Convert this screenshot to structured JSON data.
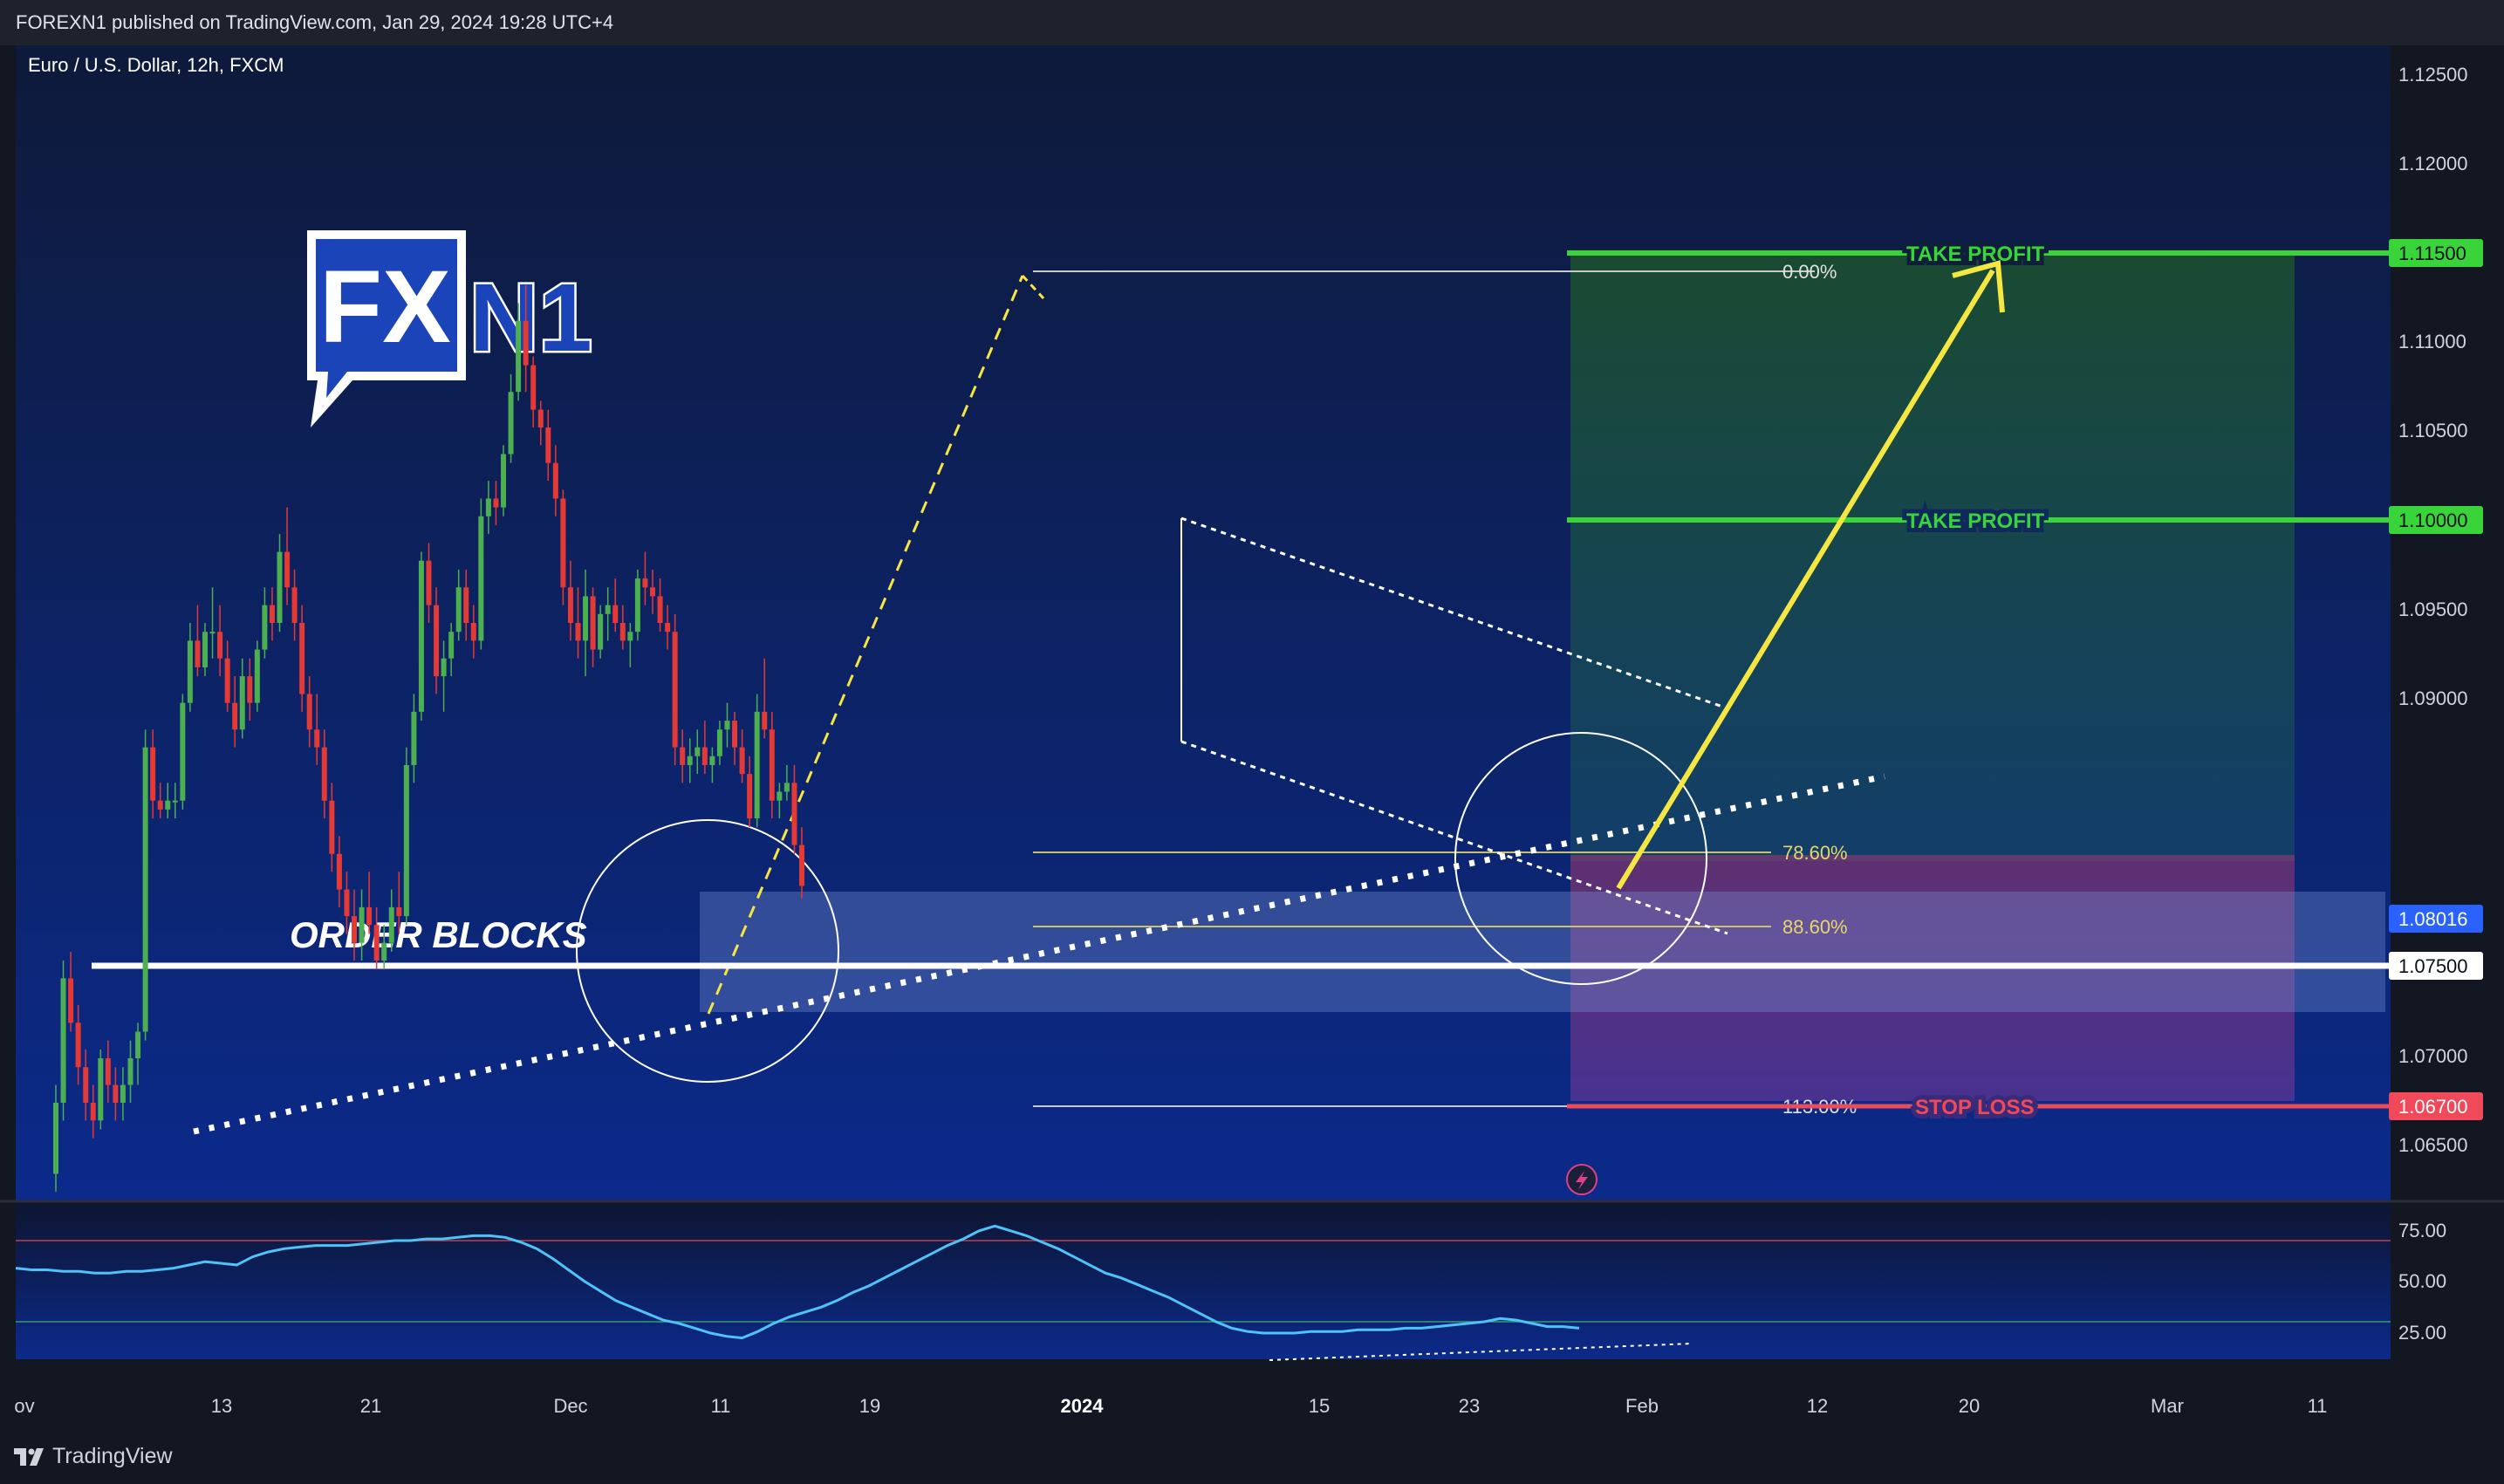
{
  "header": {
    "published": "FOREXN1 published on TradingView.com, Jan 29, 2024 19:28 UTC+4"
  },
  "footer": {
    "brand": "TradingView",
    "brand_icon": "tradingview-logo-icon"
  },
  "logo": {
    "text_fx": "FX",
    "text_n1": "N1"
  },
  "chart_data": {
    "type": "candlestick",
    "title": "Euro / U.S. Dollar, 12h, FXCM",
    "ylim": [
      1.0625,
      1.1275
    ],
    "y_ticks": [
      "1.06500",
      "1.07000",
      "1.09000",
      "1.09500",
      "1.10500",
      "1.11000",
      "1.12000",
      "1.12500"
    ],
    "x_ticks": [
      "ov",
      "13",
      "21",
      "Dec",
      "11",
      "19",
      "2024",
      "15",
      "23",
      "Feb",
      "12",
      "20",
      "Mar",
      "11"
    ],
    "current_price": "1.08016",
    "price_tags": [
      "1.11500",
      "1.10000",
      "1.07500",
      "1.06700"
    ],
    "annotations": {
      "take_profit_1": "TAKE PROFIT",
      "take_profit_2": "TAKE PROFIT",
      "stop_loss": "STOP LOSS",
      "order_blocks": "ORDER BLOCKS"
    },
    "fib_levels": [
      {
        "label": "0.00%",
        "price": 1.1137
      },
      {
        "label": "78.60%",
        "price": 1.0814
      },
      {
        "label": "88.60%",
        "price": 1.0773
      },
      {
        "label": "113.00%",
        "price": 1.067
      }
    ],
    "candles": [
      [
        1.064,
        1.069,
        1.063,
        1.068
      ],
      [
        1.068,
        1.076,
        1.067,
        1.075
      ],
      [
        1.075,
        1.0765,
        1.072,
        1.0725
      ],
      [
        1.0725,
        1.0735,
        1.069,
        1.07
      ],
      [
        1.07,
        1.071,
        1.067,
        1.068
      ],
      [
        1.068,
        1.069,
        1.066,
        1.067
      ],
      [
        1.067,
        1.071,
        1.0665,
        1.0705
      ],
      [
        1.0705,
        1.0715,
        1.068,
        1.069
      ],
      [
        1.069,
        1.07,
        1.067,
        1.068
      ],
      [
        1.068,
        1.07,
        1.067,
        1.069
      ],
      [
        1.069,
        1.0715,
        1.068,
        1.0705
      ],
      [
        1.0705,
        1.0725,
        1.069,
        1.072
      ],
      [
        1.072,
        1.089,
        1.0715,
        1.088
      ],
      [
        1.088,
        1.089,
        1.084,
        1.085
      ],
      [
        1.085,
        1.086,
        1.084,
        1.0845
      ],
      [
        1.0845,
        1.086,
        1.084,
        1.085
      ],
      [
        1.085,
        1.086,
        1.084,
        1.085
      ],
      [
        1.085,
        1.091,
        1.0845,
        1.0905
      ],
      [
        1.0905,
        1.095,
        1.09,
        1.094
      ],
      [
        1.094,
        1.096,
        1.092,
        1.0925
      ],
      [
        1.0925,
        1.095,
        1.092,
        1.0945
      ],
      [
        1.0945,
        1.097,
        1.093,
        1.0945
      ],
      [
        1.0945,
        1.096,
        1.092,
        1.093
      ],
      [
        1.093,
        1.094,
        1.09,
        1.0905
      ],
      [
        1.0905,
        1.092,
        1.088,
        1.089
      ],
      [
        1.089,
        1.093,
        1.0885,
        1.092
      ],
      [
        1.092,
        1.093,
        1.0895,
        1.0905
      ],
      [
        1.0905,
        1.094,
        1.09,
        1.0935
      ],
      [
        1.0935,
        1.097,
        1.093,
        1.096
      ],
      [
        1.096,
        1.097,
        1.094,
        1.095
      ],
      [
        1.095,
        1.1,
        1.0945,
        1.099
      ],
      [
        1.099,
        1.1015,
        1.096,
        1.097
      ],
      [
        1.097,
        1.098,
        1.094,
        1.095
      ],
      [
        1.095,
        1.096,
        1.09,
        1.091
      ],
      [
        1.091,
        1.092,
        1.088,
        1.089
      ],
      [
        1.089,
        1.091,
        1.087,
        1.088
      ],
      [
        1.088,
        1.089,
        1.084,
        1.085
      ],
      [
        1.085,
        1.086,
        1.081,
        1.082
      ],
      [
        1.082,
        1.083,
        1.079,
        1.08
      ],
      [
        1.08,
        1.081,
        1.0775,
        1.0785
      ],
      [
        1.0785,
        1.08,
        1.076,
        1.077
      ],
      [
        1.077,
        1.08,
        1.076,
        1.079
      ],
      [
        1.079,
        1.081,
        1.0775,
        1.078
      ],
      [
        1.078,
        1.079,
        1.0755,
        1.076
      ],
      [
        1.076,
        1.078,
        1.0755,
        1.077
      ],
      [
        1.077,
        1.08,
        1.0765,
        1.079
      ],
      [
        1.079,
        1.081,
        1.0775,
        1.0785
      ],
      [
        1.0785,
        1.088,
        1.078,
        1.087
      ],
      [
        1.087,
        1.091,
        1.086,
        1.09
      ],
      [
        1.09,
        1.099,
        1.0895,
        1.0985
      ],
      [
        1.0985,
        1.0995,
        1.095,
        1.096
      ],
      [
        1.096,
        1.097,
        1.091,
        1.092
      ],
      [
        1.092,
        1.094,
        1.09,
        1.093
      ],
      [
        1.093,
        1.095,
        1.092,
        1.0945
      ],
      [
        1.0945,
        1.098,
        1.094,
        1.097
      ],
      [
        1.097,
        1.098,
        1.094,
        1.095
      ],
      [
        1.095,
        1.096,
        1.093,
        1.094
      ],
      [
        1.094,
        1.102,
        1.0935,
        1.101
      ],
      [
        1.101,
        1.103,
        1.1,
        1.102
      ],
      [
        1.102,
        1.103,
        1.1005,
        1.1015
      ],
      [
        1.1015,
        1.105,
        1.101,
        1.1045
      ],
      [
        1.1045,
        1.109,
        1.104,
        1.108
      ],
      [
        1.108,
        1.113,
        1.1075,
        1.112
      ],
      [
        1.112,
        1.114,
        1.108,
        1.1095
      ],
      [
        1.1095,
        1.11,
        1.106,
        1.107
      ],
      [
        1.107,
        1.1075,
        1.105,
        1.106
      ],
      [
        1.106,
        1.107,
        1.103,
        1.104
      ],
      [
        1.104,
        1.105,
        1.101,
        1.102
      ],
      [
        1.102,
        1.1025,
        1.096,
        1.097
      ],
      [
        1.097,
        1.0985,
        1.094,
        1.095
      ],
      [
        1.095,
        1.097,
        1.093,
        1.094
      ],
      [
        1.094,
        1.098,
        1.092,
        1.0965
      ],
      [
        1.0965,
        1.097,
        1.0925,
        1.0935
      ],
      [
        1.0935,
        1.096,
        1.093,
        1.0955
      ],
      [
        1.0955,
        1.097,
        1.094,
        1.096
      ],
      [
        1.096,
        1.0975,
        1.0945,
        1.095
      ],
      [
        1.095,
        1.096,
        1.0935,
        1.094
      ],
      [
        1.094,
        1.095,
        1.0925,
        1.0945
      ],
      [
        1.0945,
        1.098,
        1.094,
        1.0975
      ],
      [
        1.0975,
        1.099,
        1.096,
        1.097
      ],
      [
        1.097,
        1.098,
        1.0955,
        1.0965
      ],
      [
        1.0965,
        1.0975,
        1.0945,
        1.095
      ],
      [
        1.095,
        1.096,
        1.0935,
        1.0945
      ],
      [
        1.0945,
        1.0955,
        1.087,
        1.088
      ],
      [
        1.088,
        1.089,
        1.086,
        1.087
      ],
      [
        1.087,
        1.0885,
        1.086,
        1.0875
      ],
      [
        1.0875,
        1.089,
        1.0865,
        1.088
      ],
      [
        1.088,
        1.0895,
        1.0865,
        1.087
      ],
      [
        1.087,
        1.088,
        1.086,
        1.0875
      ],
      [
        1.0875,
        1.0895,
        1.087,
        1.089
      ],
      [
        1.089,
        1.0905,
        1.088,
        1.0895
      ],
      [
        1.0895,
        1.09,
        1.087,
        1.088
      ],
      [
        1.088,
        1.089,
        1.086,
        1.0865
      ],
      [
        1.0865,
        1.0875,
        1.0835,
        1.084
      ],
      [
        1.084,
        1.091,
        1.0835,
        1.09
      ],
      [
        1.09,
        1.093,
        1.0885,
        1.089
      ],
      [
        1.089,
        1.09,
        1.084,
        1.085
      ],
      [
        1.085,
        1.086,
        1.084,
        1.0855
      ],
      [
        1.0855,
        1.087,
        1.085,
        1.086
      ],
      [
        1.086,
        1.087,
        1.082,
        1.0825
      ],
      [
        1.0825,
        1.0835,
        1.0795,
        1.0802
      ]
    ],
    "rsi": {
      "levels": [
        25,
        50,
        75
      ],
      "tick_labels": [
        "75.00",
        "50.00",
        "25.00"
      ],
      "values": [
        58,
        57,
        57,
        56,
        56,
        55,
        55,
        56,
        56,
        57,
        58,
        60,
        62,
        61,
        60,
        65,
        68,
        70,
        71,
        72,
        72,
        72,
        73,
        74,
        75,
        75,
        76,
        76,
        77,
        78,
        78,
        77,
        74,
        70,
        64,
        57,
        50,
        44,
        38,
        34,
        30,
        26,
        24,
        21,
        18,
        16,
        15,
        19,
        24,
        28,
        31,
        34,
        38,
        43,
        47,
        52,
        57,
        62,
        67,
        72,
        76,
        81,
        84,
        81,
        78,
        74,
        70,
        65,
        60,
        55,
        52,
        48,
        44,
        40,
        35,
        30,
        25,
        21,
        19,
        18,
        18,
        18,
        19,
        19,
        19,
        20,
        20,
        20,
        21,
        21,
        22,
        23,
        24,
        25,
        27,
        26,
        24,
        22,
        22,
        21
      ]
    }
  }
}
